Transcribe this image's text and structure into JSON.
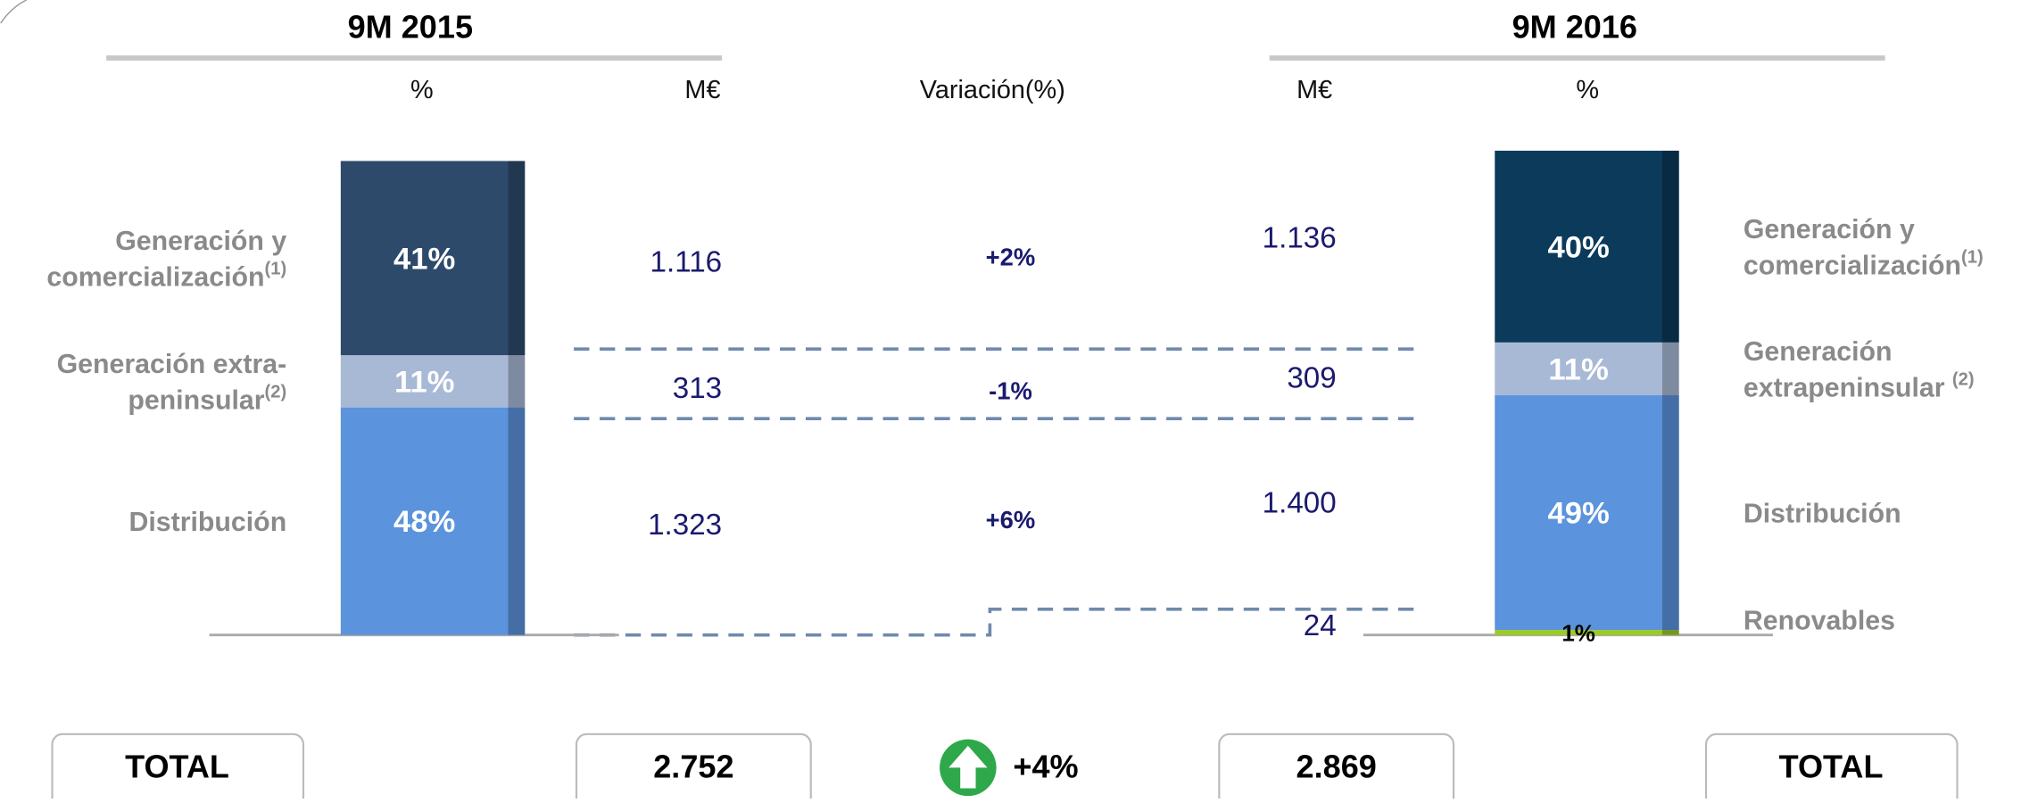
{
  "header_left": "9M 2015",
  "header_right": "9M 2016",
  "columns": {
    "pct_left": "%",
    "meur_left": "M€",
    "variation": "Variación(%)",
    "meur_right": "M€",
    "pct_right": "%"
  },
  "left_bar": {
    "segments": [
      {
        "label_lines": [
          "Generación y",
          "comercialización"
        ],
        "note": "(1)",
        "value": 41,
        "value_label": "41%",
        "color": "#2e4a6b"
      },
      {
        "label_lines": [
          "Generación extra-",
          "peninsular"
        ],
        "note": "(2)",
        "value": 11,
        "value_label": "11%",
        "color": "#a8b9d6"
      },
      {
        "label_lines": [
          "Distribución"
        ],
        "value": 48,
        "value_label": "48%",
        "color": "#5b93dc"
      }
    ]
  },
  "right_bar": {
    "segments": [
      {
        "label_lines": [
          "Generación y",
          "comercialización"
        ],
        "note": "(1)",
        "value": 40,
        "value_label": "40%",
        "color": "#0b3a5a"
      },
      {
        "label_lines": [
          "Generación",
          "extrapeninsular "
        ],
        "note": "(2)",
        "value": 11,
        "value_label": "11%",
        "color": "#a8b9d6"
      },
      {
        "label_lines": [
          "Distribución"
        ],
        "value": 49,
        "value_label": "49%",
        "color": "#5b93dc"
      },
      {
        "label_lines": [
          "Renovables"
        ],
        "value": 1,
        "value_label": "1%",
        "color": "#9ccc1c"
      }
    ]
  },
  "meur_left": [
    "1.116",
    "313",
    "1.323"
  ],
  "meur_right": [
    "1.136",
    "309",
    "1.400",
    "24"
  ],
  "variation": [
    "+2%",
    "-1%",
    "+6%"
  ],
  "totals": {
    "left_label": "TOTAL",
    "left_value": "2.752",
    "change": "+4%",
    "right_value": "2.869",
    "right_label": "TOTAL"
  }
}
